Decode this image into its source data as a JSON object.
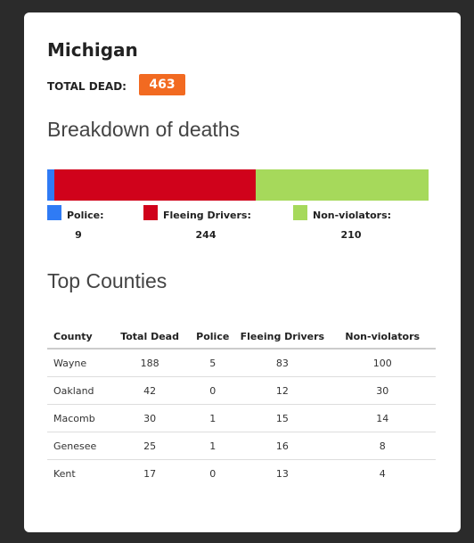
{
  "header": {
    "title": "Michigan",
    "total_label": "TOTAL DEAD:",
    "total": 463
  },
  "breakdown": {
    "title": "Breakdown of deaths",
    "type": "stacked-bar",
    "segments": [
      {
        "name": "Police:",
        "color": "#2f7bf5",
        "value": 9
      },
      {
        "name": "Fleeing Drivers:",
        "color": "#d0021b",
        "value": 244
      },
      {
        "name": "Non-violators:",
        "color": "#a6d95b",
        "value": 210
      }
    ]
  },
  "table": {
    "title": "Top Counties",
    "columns": [
      "County",
      "Total Dead",
      "Police",
      "Fleeing Drivers",
      "Non-violators"
    ],
    "rows": [
      [
        "Wayne",
        188,
        5,
        83,
        100
      ],
      [
        "Oakland",
        42,
        0,
        12,
        30
      ],
      [
        "Macomb",
        30,
        1,
        15,
        14
      ],
      [
        "Genesee",
        25,
        1,
        16,
        8
      ],
      [
        "Kent",
        17,
        0,
        13,
        4
      ]
    ]
  }
}
